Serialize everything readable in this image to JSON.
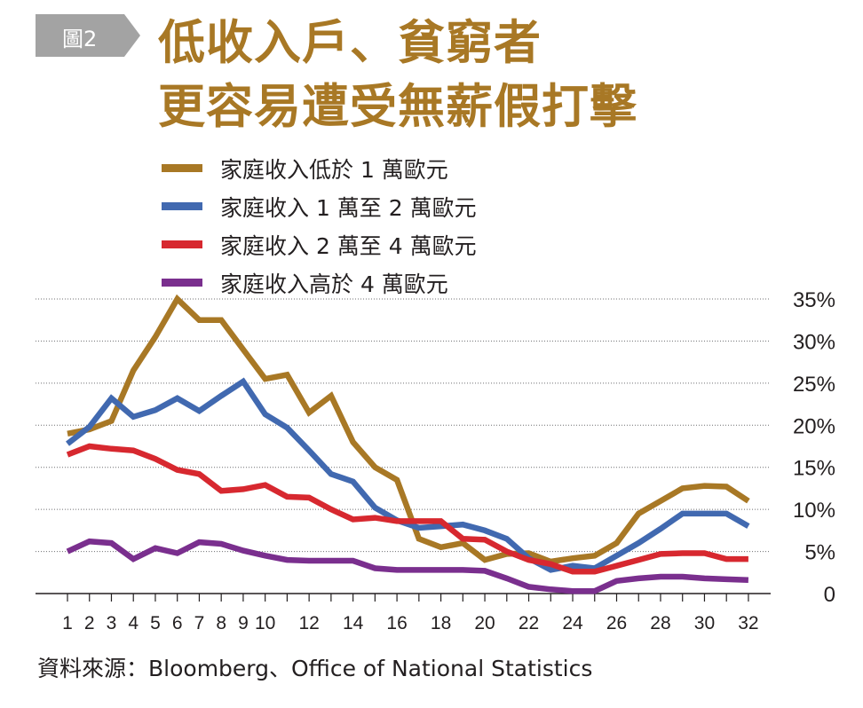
{
  "figure_tag": "圖2",
  "title_lines": [
    "低收入戶、貧窮者",
    "更容易遭受無薪假打擊"
  ],
  "source": "資料來源：Bloomberg、Office of National Statistics",
  "colors": {
    "title": "#a87825",
    "tag_bg": "#a3a3a3",
    "series_1": "#a87825",
    "series_2": "#4169b0",
    "series_3": "#d7282f",
    "series_4": "#7a2f8e"
  },
  "chart_data": {
    "type": "line",
    "title": "低收入戶、貧窮者更容易遭受無薪假打擊",
    "xlabel": "",
    "ylabel": "",
    "x": [
      1,
      2,
      3,
      4,
      5,
      6,
      7,
      8,
      9,
      10,
      11,
      12,
      13,
      14,
      15,
      16,
      17,
      18,
      19,
      20,
      21,
      22,
      23,
      24,
      25,
      26,
      27,
      28,
      29,
      30,
      31,
      32
    ],
    "x_tick_labels": [
      "1",
      "2",
      "3",
      "4",
      "5",
      "6",
      "7",
      "8",
      "9",
      "10",
      "12",
      "14",
      "16",
      "18",
      "20",
      "22",
      "24",
      "26",
      "28",
      "30",
      "32"
    ],
    "y_ticks": [
      0,
      5,
      10,
      15,
      20,
      25,
      30,
      35
    ],
    "y_tick_labels": [
      "0",
      "5%",
      "10%",
      "15%",
      "20%",
      "25%",
      "30%",
      "35%"
    ],
    "ylim": [
      0,
      35
    ],
    "grid": "horizontal dotted",
    "legend_position": "top-left",
    "series": [
      {
        "name": "家庭收入低於 1 萬歐元",
        "color": "#a87825",
        "values": [
          19,
          19.5,
          20.5,
          26.5,
          30.5,
          35,
          32.5,
          32.5,
          29,
          25.5,
          26,
          21.5,
          23.5,
          18,
          15,
          13.5,
          6.5,
          5.5,
          6,
          4,
          4.7,
          4.8,
          3.8,
          4.2,
          4.5,
          6,
          9.5,
          11,
          12.5,
          12.8,
          12.7,
          11
        ]
      },
      {
        "name": "家庭收入 1 萬至 2 萬歐元",
        "color": "#4169b0",
        "values": [
          17.8,
          19.8,
          23.2,
          21,
          21.8,
          23.2,
          21.7,
          23.5,
          25.2,
          21.3,
          19.7,
          17,
          14.2,
          13.3,
          10.2,
          8.7,
          7.8,
          8,
          8.2,
          7.5,
          6.5,
          4.2,
          2.8,
          3.3,
          3,
          4.5,
          6,
          7.7,
          9.5,
          9.5,
          9.5,
          8
        ]
      },
      {
        "name": "家庭收入 2 萬至 4 萬歐元",
        "color": "#d7282f",
        "values": [
          16.5,
          17.5,
          17.2,
          17,
          16,
          14.7,
          14.2,
          12.2,
          12.4,
          12.9,
          11.5,
          11.4,
          10,
          8.8,
          9,
          8.6,
          8.6,
          8.6,
          6.5,
          6.4,
          5,
          4,
          3.5,
          2.6,
          2.6,
          3.3,
          4,
          4.7,
          4.8,
          4.8,
          4.1,
          4.1
        ]
      },
      {
        "name": "家庭收入高於 4 萬歐元",
        "color": "#7a2f8e",
        "values": [
          5,
          6.2,
          6,
          4.1,
          5.4,
          4.8,
          6.1,
          5.9,
          5.1,
          4.5,
          4,
          3.9,
          3.9,
          3.9,
          3,
          2.8,
          2.8,
          2.8,
          2.8,
          2.7,
          1.8,
          0.8,
          0.5,
          0.3,
          0.3,
          1.5,
          1.8,
          2,
          2,
          1.8,
          1.7,
          1.6
        ]
      }
    ]
  }
}
